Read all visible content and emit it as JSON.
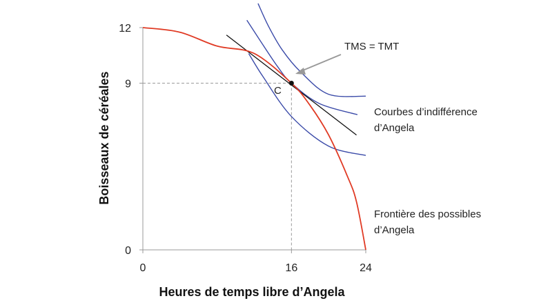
{
  "chart_data": {
    "type": "line",
    "xlabel": "Heures de temps libre d’Angela",
    "ylabel": "Boisseaux de céréales",
    "xlim": [
      0,
      24
    ],
    "ylim": [
      0,
      12
    ],
    "xticks": [
      "0",
      "16",
      "24"
    ],
    "yticks": [
      "0",
      "9",
      "12"
    ],
    "grid": false,
    "colors": {
      "frontier": "#e03a24",
      "indifference": "#3a4aa8",
      "tangent": "#111111",
      "guide": "#999999",
      "arrow": "#999999"
    },
    "series": [
      {
        "name": "Frontière des possibles d’Angela",
        "x": [
          0,
          4,
          8,
          12,
          16,
          18,
          20,
          22,
          23,
          24
        ],
        "y": [
          12,
          11.75,
          11,
          10.6,
          9,
          7.8,
          6.2,
          4,
          2.6,
          0
        ]
      },
      {
        "name": "Courbes d’indifférence d’Angela",
        "curves": [
          {
            "x": [
              11.4,
              13,
              16,
              20,
              24
            ],
            "y": [
              10.6,
              9.3,
              7.2,
              5.6,
              5.1
            ]
          },
          {
            "x": [
              11.2,
              12.5,
              14.5,
              16,
              19,
              23.1
            ],
            "y": [
              12.4,
              11.4,
              9.9,
              9,
              7.9,
              7.3
            ]
          },
          {
            "x": [
              12.4,
              13.5,
              15,
              17,
              20,
              24
            ],
            "y": [
              13.3,
              12.1,
              10.8,
              9.6,
              8.4,
              8.3
            ]
          }
        ]
      },
      {
        "name": "Tangente",
        "x": [
          9,
          23
        ],
        "y": [
          11.6,
          6.2
        ]
      }
    ],
    "point": {
      "label": "C",
      "x": 16,
      "y": 9
    },
    "annotations": {
      "tms_tmt": "TMS = TMT",
      "indifference_line1": "Courbes d’indifférence",
      "indifference_line2": "d’Angela",
      "frontier_line1": "Frontière des possibles",
      "frontier_line2": "d’Angela"
    }
  }
}
